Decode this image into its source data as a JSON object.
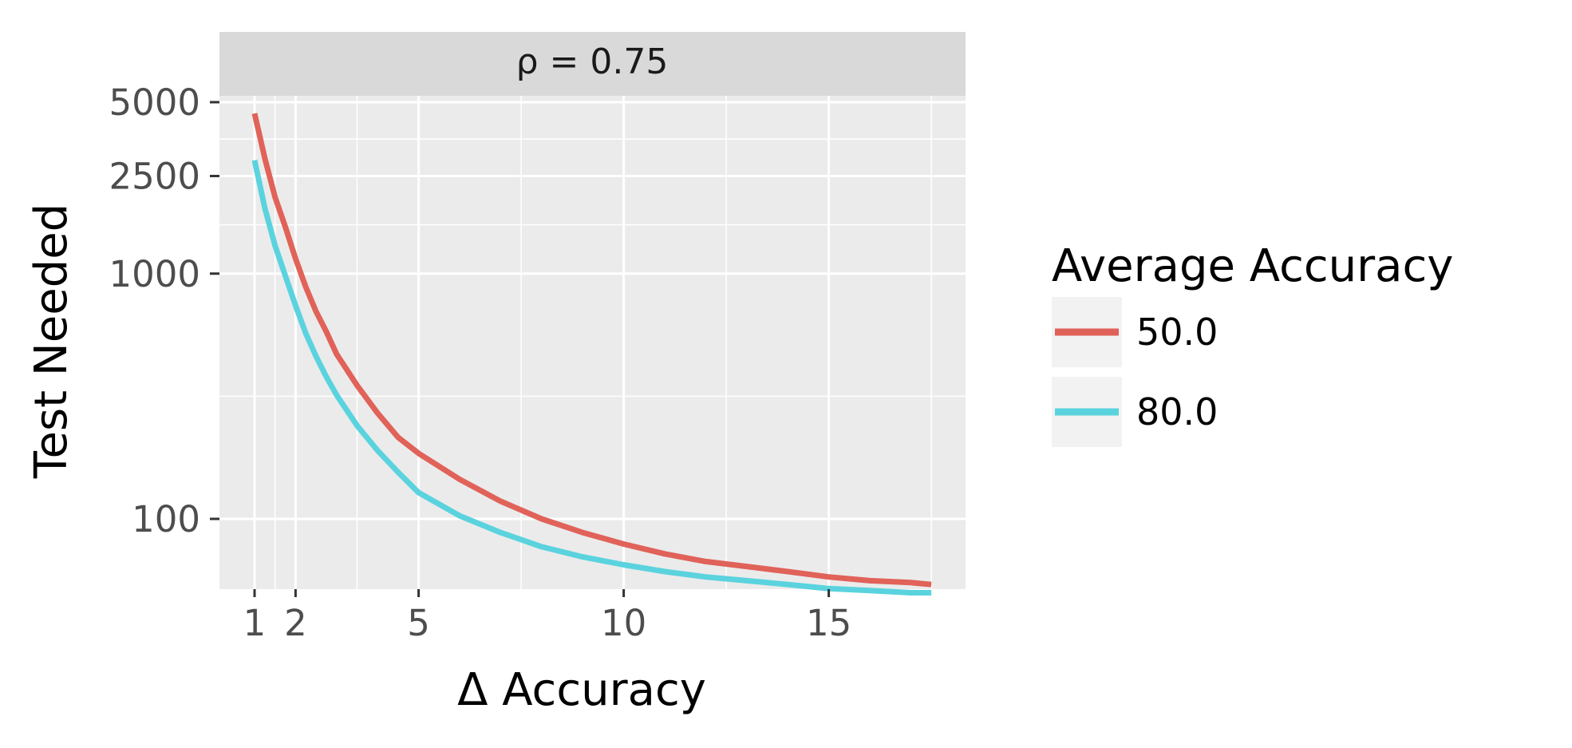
{
  "chart_data": {
    "type": "line",
    "facet_label": "ρ = 0.75",
    "xlabel": "Δ Accuracy",
    "ylabel": "Test Needed",
    "xlim": [
      0.0,
      18.0
    ],
    "ylim": [
      40,
      6000
    ],
    "y_scale": "log",
    "x_ticks": [
      1,
      2,
      5,
      10,
      15
    ],
    "x_tick_labels": [
      "1",
      "2",
      "5",
      "10",
      "15"
    ],
    "y_ticks": [
      100,
      1000,
      2500,
      5000
    ],
    "y_tick_labels": [
      "100",
      "1000",
      "2500",
      "5000"
    ],
    "grid": true,
    "legend": {
      "title": "Average Accuracy",
      "placement": "right"
    },
    "series": [
      {
        "name": "50.0",
        "color": "#e06259",
        "x": [
          1.0,
          1.25,
          1.5,
          1.75,
          2.0,
          2.25,
          2.5,
          2.75,
          3.0,
          3.5,
          4.0,
          4.5,
          5.0,
          6.0,
          7.0,
          8.0,
          9.0,
          10.0,
          11.0,
          12.0,
          13.0,
          14.0,
          15.0,
          16.0,
          17.0,
          17.5
        ],
        "y": [
          4500,
          2950,
          2050,
          1550,
          1150,
          880,
          700,
          580,
          470,
          350,
          270,
          215,
          185,
          145,
          118,
          100,
          88,
          79,
          72,
          67,
          64,
          61,
          58,
          56,
          55,
          54
        ]
      },
      {
        "name": "80.0",
        "color": "#5ad3de",
        "x": [
          1.0,
          1.25,
          1.5,
          1.75,
          2.0,
          2.25,
          2.5,
          2.75,
          3.0,
          3.5,
          4.0,
          4.5,
          5.0,
          6.0,
          7.0,
          8.0,
          9.0,
          10.0,
          11.0,
          12.0,
          13.0,
          14.0,
          15.0,
          16.0,
          17.0,
          17.5
        ],
        "y": [
          2900,
          1850,
          1300,
          980,
          740,
          570,
          460,
          380,
          320,
          240,
          190,
          155,
          128,
          103,
          88,
          77,
          70,
          65,
          61,
          58,
          56,
          54,
          52,
          51,
          50,
          50
        ]
      }
    ]
  }
}
